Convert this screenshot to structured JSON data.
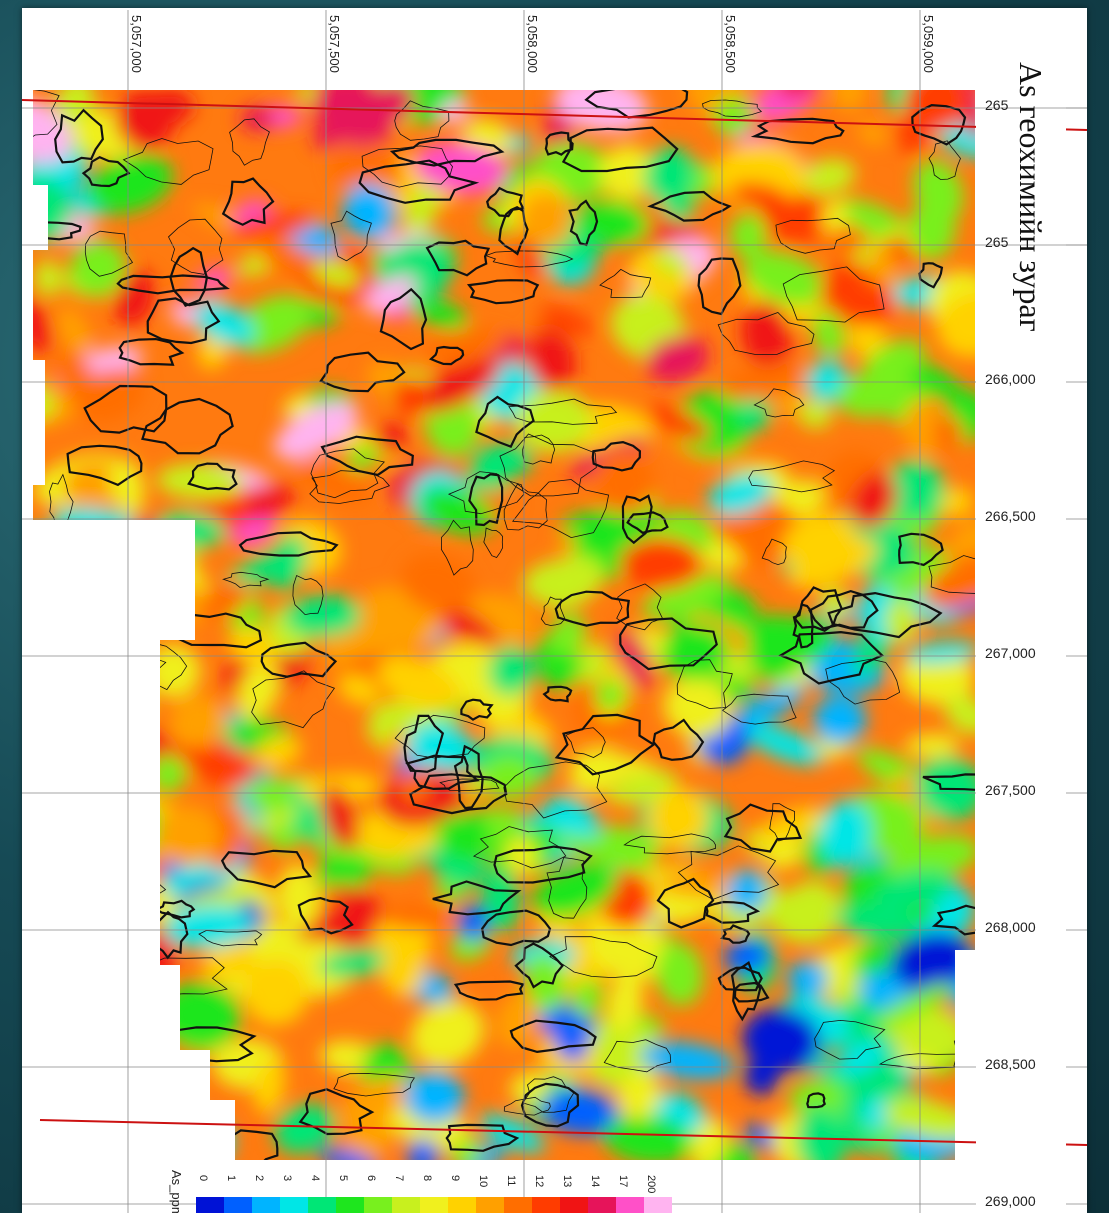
{
  "map": {
    "title": "As геохимийн зураг",
    "top_ticks": [
      "5,057,000",
      "5,057,500",
      "5,058,000",
      "5,058,500",
      "5,059,000"
    ],
    "right_ticks": [
      "265",
      "265",
      "266,000",
      "266,500",
      "267,000",
      "267,500",
      "268,000",
      "268,500",
      "269,000"
    ],
    "legend": {
      "title": "As_ppm",
      "labels": [
        "0",
        "1",
        "2",
        "3",
        "4",
        "5",
        "6",
        "7",
        "8",
        "9",
        "10",
        "11",
        "12",
        "13",
        "14",
        "17",
        "200"
      ],
      "colors": [
        "#0012d6",
        "#0060ff",
        "#00b4ff",
        "#00e6e6",
        "#00e676",
        "#1ee61e",
        "#78f01e",
        "#c8f01e",
        "#f0f01e",
        "#ffd200",
        "#ffa000",
        "#ff6e00",
        "#ff3c00",
        "#f01414",
        "#e6145a",
        "#ff50c8",
        "#ffb4f0"
      ]
    },
    "colors": {
      "boundary_line": "#cc1111",
      "contour": "#111111",
      "grid": "#888888"
    }
  }
}
